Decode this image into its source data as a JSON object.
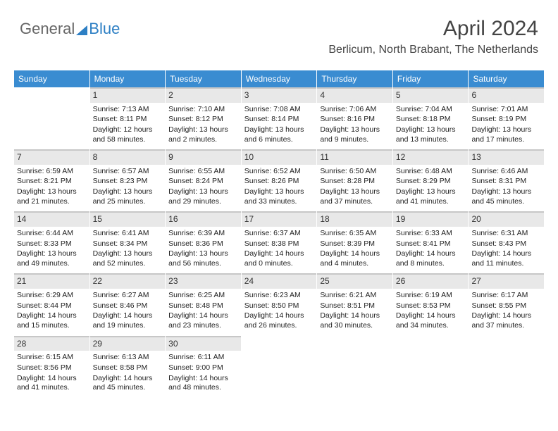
{
  "logo": {
    "part1": "General",
    "part2": "Blue"
  },
  "title": "April 2024",
  "location": "Berlicum, North Brabant, The Netherlands",
  "colors": {
    "header_bg": "#3a8cd1",
    "header_text": "#ffffff",
    "daynum_bg": "#e8e8e8",
    "daynum_border": "#c7c7c7",
    "page_bg": "#ffffff",
    "logo_gray": "#666666",
    "logo_blue": "#2d7fc4",
    "body_text": "#222222"
  },
  "typography": {
    "title_fontsize": 30,
    "location_fontsize": 16,
    "dayhead_fontsize": 12,
    "daynum_fontsize": 12,
    "body_fontsize": 10.5
  },
  "dayheads": [
    "Sunday",
    "Monday",
    "Tuesday",
    "Wednesday",
    "Thursday",
    "Friday",
    "Saturday"
  ],
  "weeks": [
    [
      {
        "n": "",
        "sr": "",
        "ss": "",
        "dl": ""
      },
      {
        "n": "1",
        "sr": "Sunrise: 7:13 AM",
        "ss": "Sunset: 8:11 PM",
        "dl": "Daylight: 12 hours and 58 minutes."
      },
      {
        "n": "2",
        "sr": "Sunrise: 7:10 AM",
        "ss": "Sunset: 8:12 PM",
        "dl": "Daylight: 13 hours and 2 minutes."
      },
      {
        "n": "3",
        "sr": "Sunrise: 7:08 AM",
        "ss": "Sunset: 8:14 PM",
        "dl": "Daylight: 13 hours and 6 minutes."
      },
      {
        "n": "4",
        "sr": "Sunrise: 7:06 AM",
        "ss": "Sunset: 8:16 PM",
        "dl": "Daylight: 13 hours and 9 minutes."
      },
      {
        "n": "5",
        "sr": "Sunrise: 7:04 AM",
        "ss": "Sunset: 8:18 PM",
        "dl": "Daylight: 13 hours and 13 minutes."
      },
      {
        "n": "6",
        "sr": "Sunrise: 7:01 AM",
        "ss": "Sunset: 8:19 PM",
        "dl": "Daylight: 13 hours and 17 minutes."
      }
    ],
    [
      {
        "n": "7",
        "sr": "Sunrise: 6:59 AM",
        "ss": "Sunset: 8:21 PM",
        "dl": "Daylight: 13 hours and 21 minutes."
      },
      {
        "n": "8",
        "sr": "Sunrise: 6:57 AM",
        "ss": "Sunset: 8:23 PM",
        "dl": "Daylight: 13 hours and 25 minutes."
      },
      {
        "n": "9",
        "sr": "Sunrise: 6:55 AM",
        "ss": "Sunset: 8:24 PM",
        "dl": "Daylight: 13 hours and 29 minutes."
      },
      {
        "n": "10",
        "sr": "Sunrise: 6:52 AM",
        "ss": "Sunset: 8:26 PM",
        "dl": "Daylight: 13 hours and 33 minutes."
      },
      {
        "n": "11",
        "sr": "Sunrise: 6:50 AM",
        "ss": "Sunset: 8:28 PM",
        "dl": "Daylight: 13 hours and 37 minutes."
      },
      {
        "n": "12",
        "sr": "Sunrise: 6:48 AM",
        "ss": "Sunset: 8:29 PM",
        "dl": "Daylight: 13 hours and 41 minutes."
      },
      {
        "n": "13",
        "sr": "Sunrise: 6:46 AM",
        "ss": "Sunset: 8:31 PM",
        "dl": "Daylight: 13 hours and 45 minutes."
      }
    ],
    [
      {
        "n": "14",
        "sr": "Sunrise: 6:44 AM",
        "ss": "Sunset: 8:33 PM",
        "dl": "Daylight: 13 hours and 49 minutes."
      },
      {
        "n": "15",
        "sr": "Sunrise: 6:41 AM",
        "ss": "Sunset: 8:34 PM",
        "dl": "Daylight: 13 hours and 52 minutes."
      },
      {
        "n": "16",
        "sr": "Sunrise: 6:39 AM",
        "ss": "Sunset: 8:36 PM",
        "dl": "Daylight: 13 hours and 56 minutes."
      },
      {
        "n": "17",
        "sr": "Sunrise: 6:37 AM",
        "ss": "Sunset: 8:38 PM",
        "dl": "Daylight: 14 hours and 0 minutes."
      },
      {
        "n": "18",
        "sr": "Sunrise: 6:35 AM",
        "ss": "Sunset: 8:39 PM",
        "dl": "Daylight: 14 hours and 4 minutes."
      },
      {
        "n": "19",
        "sr": "Sunrise: 6:33 AM",
        "ss": "Sunset: 8:41 PM",
        "dl": "Daylight: 14 hours and 8 minutes."
      },
      {
        "n": "20",
        "sr": "Sunrise: 6:31 AM",
        "ss": "Sunset: 8:43 PM",
        "dl": "Daylight: 14 hours and 11 minutes."
      }
    ],
    [
      {
        "n": "21",
        "sr": "Sunrise: 6:29 AM",
        "ss": "Sunset: 8:44 PM",
        "dl": "Daylight: 14 hours and 15 minutes."
      },
      {
        "n": "22",
        "sr": "Sunrise: 6:27 AM",
        "ss": "Sunset: 8:46 PM",
        "dl": "Daylight: 14 hours and 19 minutes."
      },
      {
        "n": "23",
        "sr": "Sunrise: 6:25 AM",
        "ss": "Sunset: 8:48 PM",
        "dl": "Daylight: 14 hours and 23 minutes."
      },
      {
        "n": "24",
        "sr": "Sunrise: 6:23 AM",
        "ss": "Sunset: 8:50 PM",
        "dl": "Daylight: 14 hours and 26 minutes."
      },
      {
        "n": "25",
        "sr": "Sunrise: 6:21 AM",
        "ss": "Sunset: 8:51 PM",
        "dl": "Daylight: 14 hours and 30 minutes."
      },
      {
        "n": "26",
        "sr": "Sunrise: 6:19 AM",
        "ss": "Sunset: 8:53 PM",
        "dl": "Daylight: 14 hours and 34 minutes."
      },
      {
        "n": "27",
        "sr": "Sunrise: 6:17 AM",
        "ss": "Sunset: 8:55 PM",
        "dl": "Daylight: 14 hours and 37 minutes."
      }
    ],
    [
      {
        "n": "28",
        "sr": "Sunrise: 6:15 AM",
        "ss": "Sunset: 8:56 PM",
        "dl": "Daylight: 14 hours and 41 minutes."
      },
      {
        "n": "29",
        "sr": "Sunrise: 6:13 AM",
        "ss": "Sunset: 8:58 PM",
        "dl": "Daylight: 14 hours and 45 minutes."
      },
      {
        "n": "30",
        "sr": "Sunrise: 6:11 AM",
        "ss": "Sunset: 9:00 PM",
        "dl": "Daylight: 14 hours and 48 minutes."
      },
      {
        "n": "",
        "sr": "",
        "ss": "",
        "dl": ""
      },
      {
        "n": "",
        "sr": "",
        "ss": "",
        "dl": ""
      },
      {
        "n": "",
        "sr": "",
        "ss": "",
        "dl": ""
      },
      {
        "n": "",
        "sr": "",
        "ss": "",
        "dl": ""
      }
    ]
  ]
}
